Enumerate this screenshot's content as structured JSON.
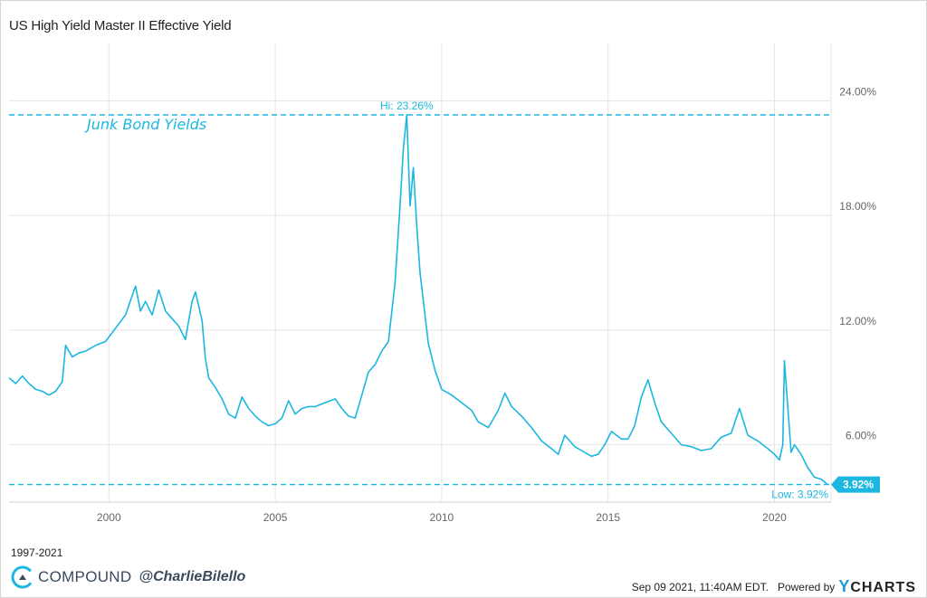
{
  "title": "US High Yield Master II Effective Yield",
  "date_range": "1997-2021",
  "brand": {
    "name": "COMPOUND",
    "handle": "@CharlieBilello",
    "logo_icon": "compound-c-logo-icon"
  },
  "footer": {
    "timestamp": "Sep 09 2021, 11:40AM EDT.",
    "powered_by": "Powered by",
    "logo_text_y": "Y",
    "logo_text_rest": "CHARTS"
  },
  "colors": {
    "series": "#1bb7e0",
    "grid": "#e5e5e5",
    "badge": "#1bb7e0"
  },
  "chart_data": {
    "type": "line",
    "xlim": [
      1997.0,
      2021.7
    ],
    "ylim": [
      3.0,
      27.0
    ],
    "x_ticks": [
      2000,
      2005,
      2010,
      2015,
      2020
    ],
    "x_tick_labels": [
      "2000",
      "2005",
      "2010",
      "2015",
      "2020"
    ],
    "y_ticks": [
      6,
      12,
      18,
      24
    ],
    "y_tick_labels": [
      "6.00%",
      "12.00%",
      "18.00%",
      "24.00%"
    ],
    "grid": true,
    "annotation": "Junk Bond Yields",
    "hi": {
      "value": 23.26,
      "label": "Hi: 23.26%",
      "x": 2008.95
    },
    "low": {
      "value": 3.92,
      "label": "Low: 3.92%"
    },
    "last_value_label": "3.92%",
    "series": [
      {
        "x": [
          1997.0,
          1997.2,
          1997.4,
          1997.6,
          1997.8,
          1998.0,
          1998.2,
          1998.4,
          1998.6,
          1998.7,
          1998.9,
          1999.1,
          1999.3,
          1999.6,
          1999.9,
          2000.2,
          2000.5,
          2000.8,
          2000.95,
          2001.1,
          2001.3,
          2001.5,
          2001.7,
          2001.9,
          2002.1,
          2002.3,
          2002.5,
          2002.6,
          2002.8,
          2002.9,
          2003.0,
          2003.2,
          2003.4,
          2003.6,
          2003.8,
          2004.0,
          2004.2,
          2004.4,
          2004.6,
          2004.8,
          2005.0,
          2005.2,
          2005.4,
          2005.6,
          2005.8,
          2006.0,
          2006.2,
          2006.5,
          2006.8,
          2007.0,
          2007.2,
          2007.4,
          2007.6,
          2007.8,
          2008.0,
          2008.2,
          2008.4,
          2008.6,
          2008.75,
          2008.85,
          2008.95,
          2009.05,
          2009.15,
          2009.25,
          2009.35,
          2009.45,
          2009.6,
          2009.8,
          2010.0,
          2010.3,
          2010.6,
          2010.9,
          2011.1,
          2011.4,
          2011.7,
          2011.9,
          2012.1,
          2012.4,
          2012.7,
          2013.0,
          2013.3,
          2013.5,
          2013.7,
          2014.0,
          2014.3,
          2014.5,
          2014.7,
          2014.9,
          2015.1,
          2015.4,
          2015.6,
          2015.8,
          2016.0,
          2016.2,
          2016.4,
          2016.6,
          2016.9,
          2017.2,
          2017.5,
          2017.8,
          2018.1,
          2018.4,
          2018.7,
          2018.95,
          2019.2,
          2019.5,
          2019.8,
          2020.0,
          2020.15,
          2020.25,
          2020.3,
          2020.4,
          2020.5,
          2020.6,
          2020.8,
          2021.0,
          2021.2,
          2021.4,
          2021.6
        ],
        "y": [
          9.5,
          9.2,
          9.6,
          9.2,
          8.9,
          8.8,
          8.6,
          8.8,
          9.3,
          11.2,
          10.6,
          10.8,
          10.9,
          11.2,
          11.4,
          12.1,
          12.8,
          14.3,
          13.0,
          13.5,
          12.8,
          14.1,
          13.0,
          12.6,
          12.2,
          11.5,
          13.5,
          14.0,
          12.5,
          10.5,
          9.5,
          9.0,
          8.4,
          7.6,
          7.4,
          8.5,
          7.9,
          7.5,
          7.2,
          7.0,
          7.1,
          7.4,
          8.3,
          7.6,
          7.9,
          8.0,
          8.0,
          8.2,
          8.4,
          7.9,
          7.5,
          7.4,
          8.6,
          9.8,
          10.2,
          10.9,
          11.4,
          14.5,
          18.5,
          21.5,
          23.26,
          18.5,
          20.5,
          17.5,
          15.0,
          13.5,
          11.3,
          9.9,
          8.9,
          8.6,
          8.2,
          7.8,
          7.2,
          6.9,
          7.8,
          8.7,
          8.0,
          7.5,
          6.9,
          6.2,
          5.8,
          5.5,
          6.5,
          5.9,
          5.6,
          5.4,
          5.5,
          6.0,
          6.7,
          6.3,
          6.3,
          7.0,
          8.5,
          9.4,
          8.2,
          7.2,
          6.6,
          6.0,
          5.9,
          5.7,
          5.8,
          6.4,
          6.6,
          7.9,
          6.5,
          6.2,
          5.8,
          5.5,
          5.2,
          6.0,
          10.4,
          8.0,
          5.6,
          6.0,
          5.5,
          4.8,
          4.3,
          4.2,
          3.92
        ]
      }
    ]
  }
}
